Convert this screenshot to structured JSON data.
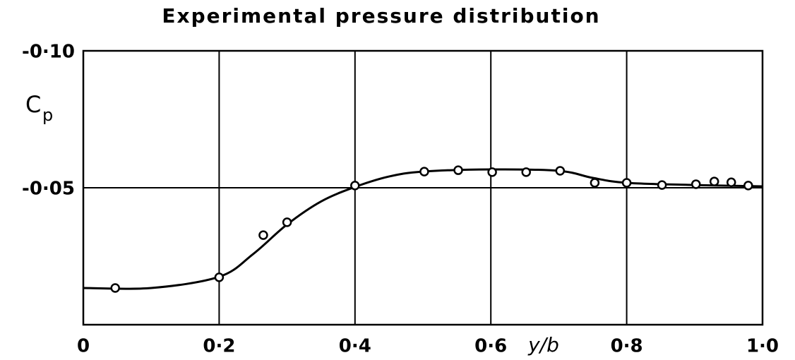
{
  "chart_data": {
    "type": "line",
    "title": "Experimental pressure distribution",
    "x_label": "y/b",
    "y_label": "C",
    "y_label_subscript": "p",
    "color": "#000000",
    "grid": true,
    "xlim": [
      0,
      1.0
    ],
    "ylim": [
      0,
      -0.1
    ],
    "xticks": [
      0,
      {
        "value": 0.2,
        "label": "0·2"
      },
      {
        "value": 0.4,
        "label": "0·4"
      },
      {
        "value": 0.6,
        "label": "0·6"
      },
      {
        "value": 0.8,
        "label": "0·8"
      },
      {
        "value": 1.0,
        "label": "1·0"
      }
    ],
    "yticks": [
      {
        "value": -0.1,
        "label": "-0·10"
      },
      {
        "value": -0.05,
        "label": "-0·05"
      }
    ],
    "curve": {
      "x": [
        0,
        0.1,
        0.2,
        0.25,
        0.3,
        0.35,
        0.4,
        0.45,
        0.5,
        0.6,
        0.7,
        0.75,
        0.8,
        0.9,
        1.0
      ],
      "values": [
        -0.0134,
        -0.0134,
        -0.0175,
        -0.0258,
        -0.0366,
        -0.045,
        -0.0503,
        -0.0541,
        -0.0559,
        -0.0567,
        -0.0562,
        -0.0536,
        -0.0518,
        -0.051,
        -0.0505
      ]
    },
    "points": {
      "x": [
        0.047,
        0.2,
        0.265,
        0.3,
        0.4,
        0.502,
        0.552,
        0.602,
        0.652,
        0.702,
        0.753,
        0.8,
        0.852,
        0.902,
        0.929,
        0.954,
        0.979
      ],
      "values": [
        -0.0134,
        -0.0173,
        -0.0327,
        -0.0374,
        -0.0508,
        -0.0559,
        -0.0564,
        -0.0557,
        -0.0557,
        -0.0562,
        -0.0518,
        -0.0518,
        -0.051,
        -0.0513,
        -0.0523,
        -0.052,
        -0.0508
      ]
    }
  }
}
